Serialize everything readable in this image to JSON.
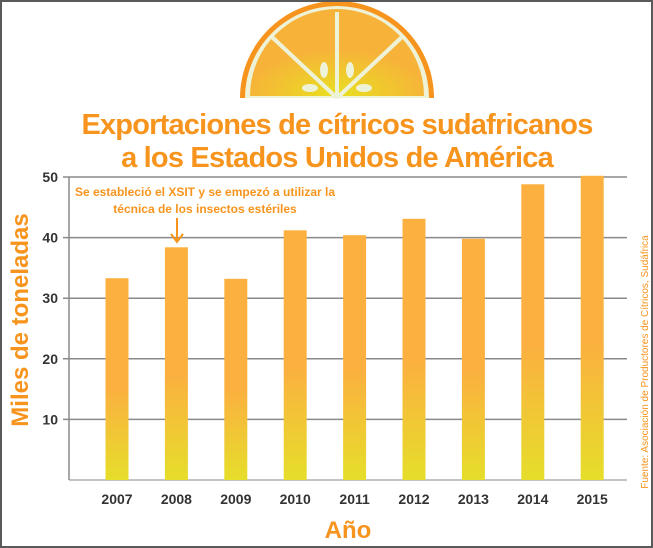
{
  "chart_data": {
    "type": "bar",
    "title": "Exportaciones de cítricos sudafricanos a los Estados Unidos de América",
    "title_lines": [
      "Exportaciones de cítricos sudafricanos",
      "a los Estados Unidos de América"
    ],
    "xlabel": "Año",
    "ylabel": "Miles de toneladas",
    "categories": [
      "2007",
      "2008",
      "2009",
      "2010",
      "2011",
      "2012",
      "2013",
      "2014",
      "2015"
    ],
    "values": [
      33.3,
      38.4,
      33.2,
      41.2,
      40.4,
      43.1,
      39.8,
      48.8,
      50.2
    ],
    "ylim": [
      0,
      50
    ],
    "yticks": [
      10,
      20,
      30,
      40,
      50
    ],
    "grid": true,
    "annotation": {
      "category": "2008",
      "lines": [
        "Se estableció el XSIT y se empezó a utilizar la",
        "técnica de los insectos estériles"
      ]
    },
    "source": "Fuente: Asociación de Productores de Cítricos, Sudáfrica",
    "colors": {
      "bar_top": "#FBB040",
      "bar_bottom": "#E6DE2A",
      "text": "#F7941D",
      "grid": "#8a8a8a"
    }
  }
}
